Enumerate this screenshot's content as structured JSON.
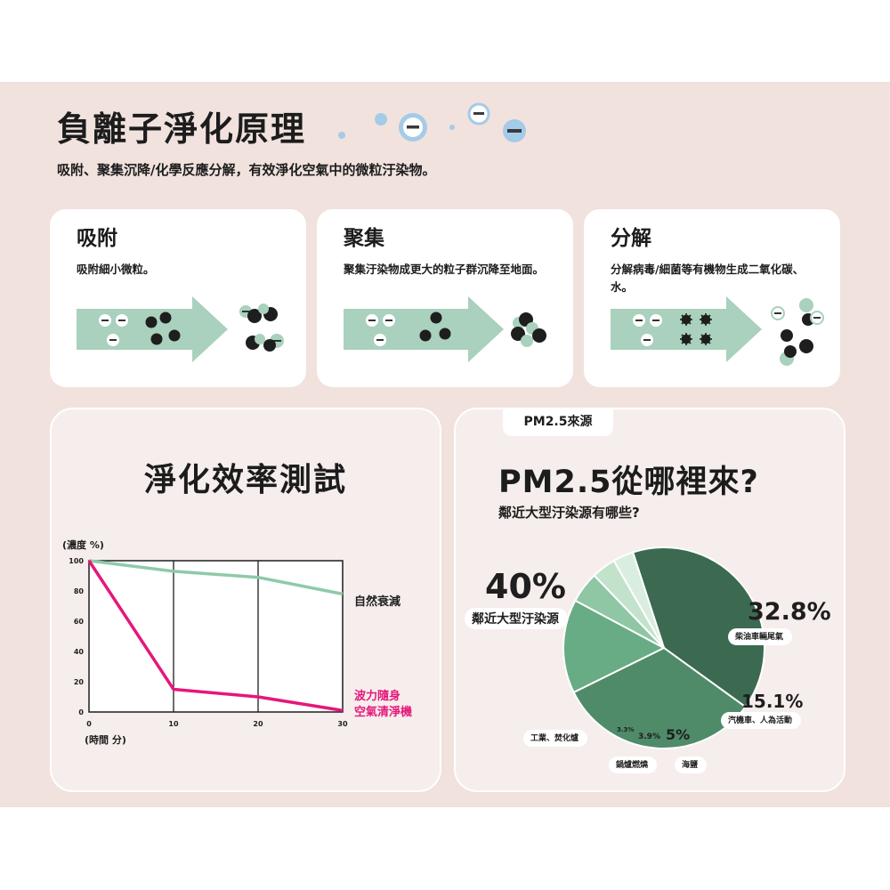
{
  "header": {
    "title": "負離子淨化原理",
    "subtitle": "吸附、聚集沉降/化學反應分解，有效淨化空氣中的微粒汙染物。"
  },
  "steps": [
    {
      "title": "吸附",
      "desc": "吸附細小微粒。"
    },
    {
      "title": "聚集",
      "desc": "聚集汙染物成更大的粒子群沉降至地面。"
    },
    {
      "title": "分解",
      "desc": "分解病毒/細菌等有機物生成二氧化碳、水。"
    }
  ],
  "ion_symbol": "−",
  "colors": {
    "band": "#f1e2de",
    "mint": "#a9d1bd",
    "ion_blue": "#a4cbe8",
    "magenta": "#e5177a",
    "dark_green": "#3b6a51",
    "mid_green": "#4f8b69",
    "green": "#67ac84",
    "light_green": "#8fc6a4",
    "pale_green": "#c3e2cc",
    "paler_green": "#d9eedf"
  },
  "test_panel": {
    "title": "淨化效率測試"
  },
  "pm_panel": {
    "tab": "PM2.5來源",
    "title": "PM2.5從哪裡來?",
    "subtitle": "鄰近大型汙染源有哪些?"
  },
  "chart_data": [
    {
      "type": "line",
      "ylabel": "(濃度 %)",
      "xlabel": "(時間 分)",
      "x_ticks": [
        0,
        10,
        20,
        30
      ],
      "y_ticks": [
        0,
        20,
        40,
        60,
        80,
        100
      ],
      "xlim": [
        0,
        30
      ],
      "ylim": [
        0,
        100
      ],
      "grid": "vertical lines at 10 and 20",
      "series": [
        {
          "name": "自然衰減",
          "color": "#8fcaa8",
          "x": [
            0,
            10,
            20,
            30
          ],
          "y": [
            100,
            93,
            89,
            78
          ]
        },
        {
          "name": "波力隨身空氣清淨機",
          "color": "#e5177a",
          "x": [
            0,
            10,
            20,
            30
          ],
          "y": [
            100,
            15,
            10,
            1
          ]
        }
      ]
    },
    {
      "type": "pie",
      "slices": [
        {
          "name": "鄰近大型汙染源",
          "value": 40,
          "label": "40%",
          "color": "#3b6a51"
        },
        {
          "name": "柴油車輛尾氣",
          "value": 32.8,
          "label": "32.8%",
          "color": "#4f8b69"
        },
        {
          "name": "汽機車、人為活動",
          "value": 15.1,
          "label": "15.1%",
          "color": "#67ac84"
        },
        {
          "name": "海鹽",
          "value": 5,
          "label": "5%",
          "color": "#8fc6a4"
        },
        {
          "name": "鍋爐燃燒",
          "value": 3.9,
          "label": "3.9%",
          "color": "#c3e2cc"
        },
        {
          "name": "工業、焚化爐",
          "value": 3.3,
          "label": "3.3%",
          "color": "#d9eedf"
        }
      ]
    }
  ]
}
